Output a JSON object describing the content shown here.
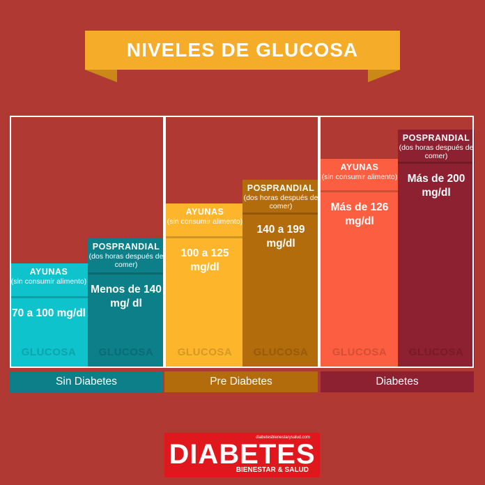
{
  "title": "NIVELES DE GLUCOSA",
  "chart_data": {
    "type": "bar",
    "title": "NIVELES DE GLUCOSA",
    "unit": "mg/dl",
    "categories": [
      "Sin Diabetes",
      "Pre Diabetes",
      "Diabetes"
    ],
    "colors": {
      "Sin Diabetes": [
        "#0fc3cc",
        "#0d7f88"
      ],
      "Pre Diabetes": [
        "#fdb52c",
        "#b26c0c"
      ],
      "Diabetes": [
        "#fc5e41",
        "#8d2031"
      ]
    },
    "bars": [
      {
        "category": "Sin Diabetes",
        "measure": "AYUNAS",
        "note": "(sin consumir alimento)",
        "range": "70 a 100 mg/dl",
        "low": 70,
        "high": 100,
        "label_small": "GLUCOSA"
      },
      {
        "category": "Sin Diabetes",
        "measure": "POSPRANDIAL",
        "note": "(dos horas después de comer)",
        "range": "Menos de 140 mg/ dl",
        "low": null,
        "high": 140,
        "label_small": "GLUCOSA"
      },
      {
        "category": "Pre Diabetes",
        "measure": "AYUNAS",
        "note": "(sin consumir alimento)",
        "range": "100 a 125 mg/dl",
        "low": 100,
        "high": 125,
        "label_small": "GLUCOSA"
      },
      {
        "category": "Pre Diabetes",
        "measure": "POSPRANDIAL",
        "note": "(dos horas después de comer)",
        "range": "140 a 199 mg/dl",
        "low": 140,
        "high": 199,
        "label_small": "GLUCOSA"
      },
      {
        "category": "Diabetes",
        "measure": "AYUNAS",
        "note": "(sin consumir alimento)",
        "range": "Más de 126 mg/dl",
        "low": 126,
        "high": null,
        "label_small": "GLUCOSA"
      },
      {
        "category": "Diabetes",
        "measure": "POSPRANDIAL",
        "note": "(dos horas después de comer)",
        "range": "Más de 200 mg/dl",
        "low": 200,
        "high": null,
        "label_small": "GLUCOSA"
      }
    ]
  },
  "logo": {
    "main": "DIABETES",
    "sub": "BIENESTAR & SALUD",
    "url": "diabetesbienestarysalud.com"
  }
}
